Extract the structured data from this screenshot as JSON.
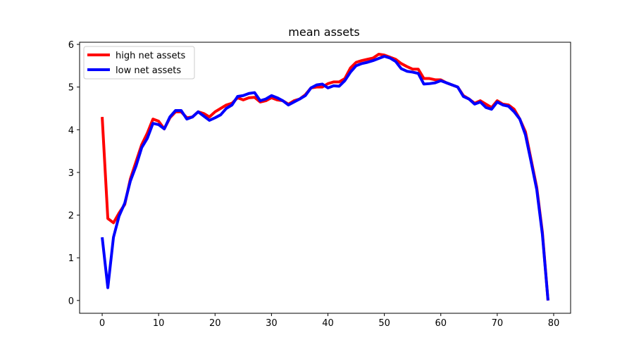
{
  "chart_data": {
    "type": "line",
    "title": "mean assets",
    "xlabel": "",
    "ylabel": "",
    "xlim": [
      -4,
      83
    ],
    "ylim": [
      -0.3,
      6.05
    ],
    "xticks": [
      0,
      10,
      20,
      30,
      40,
      50,
      60,
      70,
      80
    ],
    "yticks": [
      0,
      1,
      2,
      3,
      4,
      5,
      6
    ],
    "grid": false,
    "legend_position": "top-left",
    "x": [
      0,
      1,
      2,
      3,
      4,
      5,
      6,
      7,
      8,
      9,
      10,
      11,
      12,
      13,
      14,
      15,
      16,
      17,
      18,
      19,
      20,
      21,
      22,
      23,
      24,
      25,
      26,
      27,
      28,
      29,
      30,
      31,
      32,
      33,
      34,
      35,
      36,
      37,
      38,
      39,
      40,
      41,
      42,
      43,
      44,
      45,
      46,
      47,
      48,
      49,
      50,
      51,
      52,
      53,
      54,
      55,
      56,
      57,
      58,
      59,
      60,
      61,
      62,
      63,
      64,
      65,
      66,
      67,
      68,
      69,
      70,
      71,
      72,
      73,
      74,
      75,
      76,
      77,
      78,
      79
    ],
    "series": [
      {
        "name": "high net assets",
        "color": "#ff0000",
        "values": [
          4.3,
          1.92,
          1.82,
          2.05,
          2.25,
          2.85,
          3.25,
          3.65,
          3.92,
          4.25,
          4.2,
          4.02,
          4.28,
          4.42,
          4.42,
          4.28,
          4.3,
          4.42,
          4.38,
          4.3,
          4.42,
          4.5,
          4.58,
          4.62,
          4.75,
          4.7,
          4.75,
          4.76,
          4.65,
          4.68,
          4.75,
          4.7,
          4.68,
          4.6,
          4.68,
          4.72,
          4.82,
          4.98,
          5.0,
          5.0,
          5.08,
          5.12,
          5.12,
          5.2,
          5.45,
          5.58,
          5.62,
          5.65,
          5.68,
          5.77,
          5.75,
          5.7,
          5.65,
          5.55,
          5.48,
          5.42,
          5.42,
          5.2,
          5.2,
          5.17,
          5.17,
          5.1,
          5.05,
          5.0,
          4.8,
          4.72,
          4.62,
          4.68,
          4.6,
          4.52,
          4.68,
          4.6,
          4.58,
          4.48,
          4.25,
          3.95,
          3.3,
          2.65,
          1.6,
          0.0
        ]
      },
      {
        "name": "low net assets",
        "color": "#0000ff",
        "values": [
          1.48,
          0.3,
          1.48,
          1.98,
          2.28,
          2.8,
          3.15,
          3.58,
          3.8,
          4.15,
          4.12,
          4.02,
          4.3,
          4.45,
          4.45,
          4.25,
          4.3,
          4.42,
          4.32,
          4.22,
          4.28,
          4.35,
          4.5,
          4.58,
          4.78,
          4.8,
          4.85,
          4.87,
          4.68,
          4.72,
          4.8,
          4.75,
          4.68,
          4.58,
          4.65,
          4.72,
          4.8,
          4.98,
          5.05,
          5.07,
          4.98,
          5.03,
          5.02,
          5.15,
          5.35,
          5.5,
          5.55,
          5.58,
          5.62,
          5.67,
          5.72,
          5.68,
          5.6,
          5.43,
          5.37,
          5.35,
          5.32,
          5.07,
          5.08,
          5.1,
          5.15,
          5.1,
          5.05,
          5.0,
          4.78,
          4.72,
          4.6,
          4.65,
          4.52,
          4.48,
          4.65,
          4.58,
          4.55,
          4.42,
          4.25,
          3.88,
          3.25,
          2.6,
          1.55,
          0.0
        ]
      }
    ]
  }
}
